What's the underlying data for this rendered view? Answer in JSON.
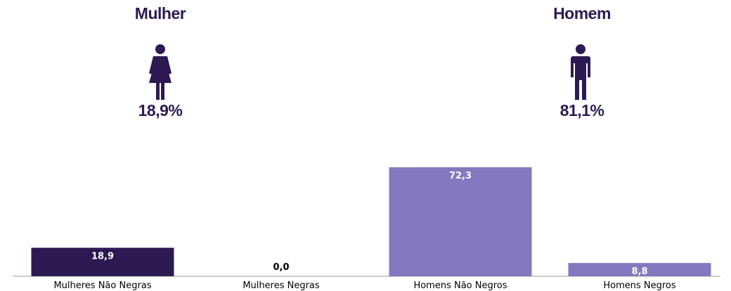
{
  "infographic": {
    "female": {
      "title": "Mulher",
      "percent": "18,9%",
      "icon": "female-person-icon"
    },
    "male": {
      "title": "Homem",
      "percent": "81,1%",
      "icon": "male-person-icon"
    }
  },
  "colors": {
    "dark_purple": "#2e1a52",
    "light_purple": "#8478c0",
    "axis": "#999999"
  },
  "chart_data": {
    "type": "bar",
    "categories": [
      "Mulheres Não Negras",
      "Mulheres Negras",
      "Homens Não Negros",
      "Homens Negros"
    ],
    "values": [
      18.9,
      0.0,
      72.3,
      8.8
    ],
    "value_labels": [
      "18,9",
      "0,0",
      "72,3",
      "8,8"
    ],
    "bar_colors": [
      "#2e1a52",
      "#2e1a52",
      "#8478c0",
      "#8478c0"
    ],
    "title": "",
    "xlabel": "",
    "ylabel": "",
    "ylim": [
      0,
      100
    ],
    "grid": false,
    "legend": "none"
  }
}
